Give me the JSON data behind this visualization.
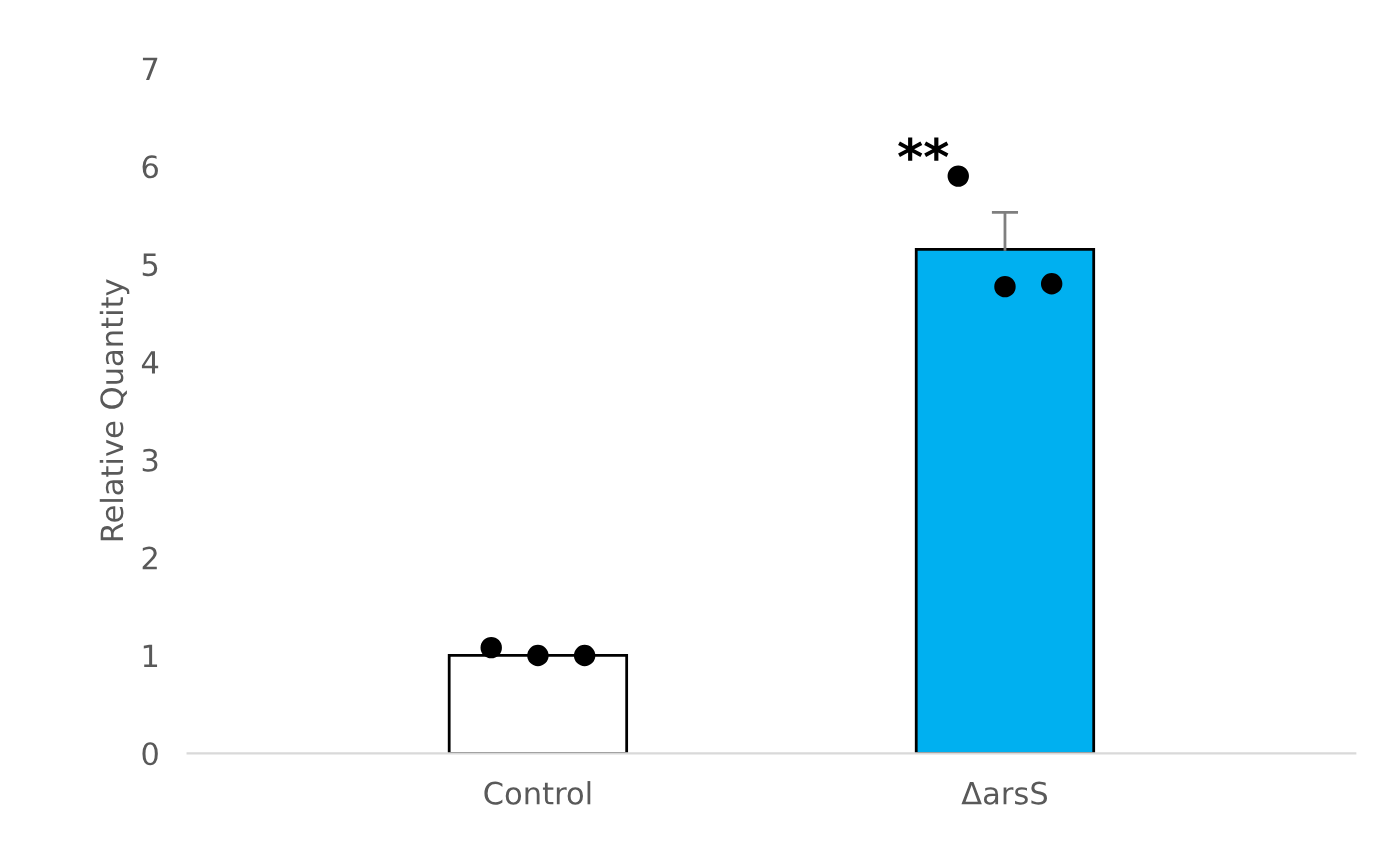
{
  "chart_data": {
    "type": "bar",
    "ylabel": "Relative Quantity",
    "categories": [
      "Control",
      "ΔarsS"
    ],
    "series": [
      {
        "values": [
          1.0,
          5.15
        ],
        "colors": [
          "#ffffff",
          "#00b0f0"
        ],
        "errors": [
          null,
          [
            5.15,
            5.53
          ]
        ]
      },
      {
        "type": "scatter",
        "x": [
          "Control",
          "ΔarsS"
        ],
        "values": [
          1.08,
          5.9
        ],
        "color": "#000000",
        "marker": "circle"
      },
      {
        "type": "scatter",
        "x": [
          "Control",
          "ΔarsS"
        ],
        "values": [
          1.0,
          4.77
        ],
        "color": "#000000",
        "marker": "circle"
      },
      {
        "type": "scatter",
        "x": [
          "Control",
          "ΔarsS"
        ],
        "values": [
          1.0,
          4.8
        ],
        "color": "#000000",
        "marker": "circle"
      }
    ],
    "annotations": [
      "**"
    ],
    "ylim": [
      0,
      7
    ],
    "yticks": [
      0,
      1,
      2,
      3,
      4,
      5,
      6,
      7
    ],
    "grid": false,
    "legend": false
  }
}
